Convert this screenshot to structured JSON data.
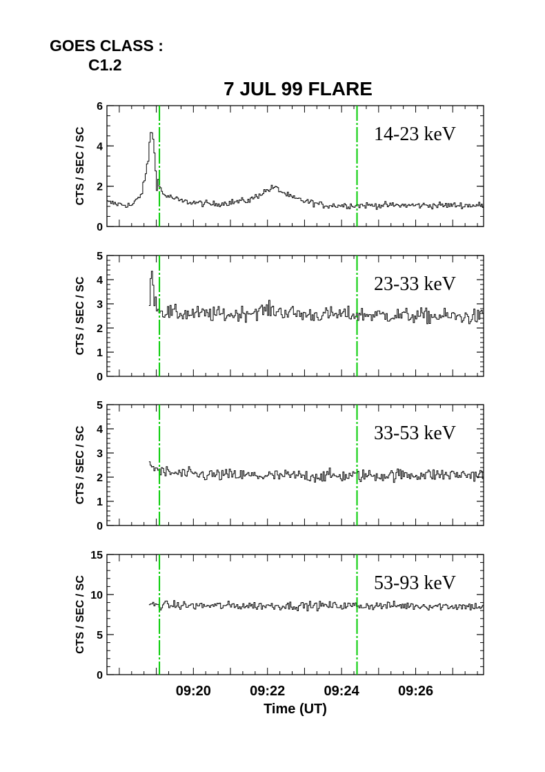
{
  "header": {
    "goes_label": "GOES CLASS :",
    "goes_class": "C1.2",
    "title": "7 JUL 99 FLARE"
  },
  "colors": {
    "marker_lines": "#00cc00",
    "trace": "#000000"
  },
  "chart_data": {
    "type": "line",
    "title": "7 JUL 99 FLARE",
    "xlabel": "Time (UT)",
    "x_unit": "minutes",
    "xlim": [
      "09:17:40",
      "09:27:50"
    ],
    "x_tick_labels": [
      "09:20",
      "09:22",
      "09:24",
      "09:26"
    ],
    "x_tick_values": [
      "09:20",
      "09:22",
      "09:24",
      "09:26"
    ],
    "vertical_markers": [
      "09:19:05",
      "09:24:25"
    ],
    "grid": false,
    "panels": [
      {
        "label": "14-23 keV",
        "ylabel": "CTS / SEC / SC",
        "ylim": [
          0,
          6
        ],
        "y_ticks": [
          0,
          2,
          4,
          6
        ],
        "data_start": "09:17:40",
        "baseline": 1.0,
        "noise": 0.15,
        "x": [
          "09:17:40",
          "09:18:00",
          "09:18:20",
          "09:18:35",
          "09:18:45",
          "09:18:50",
          "09:18:55",
          "09:19:00",
          "09:19:10",
          "09:19:40",
          "09:20:30",
          "09:21:30",
          "09:21:55",
          "09:22:10",
          "09:22:40",
          "09:23:30",
          "09:24:30",
          "09:25:30",
          "09:26:30",
          "09:27:50"
        ],
        "y": [
          1.2,
          1.1,
          1.05,
          1.6,
          3.0,
          4.9,
          4.0,
          2.3,
          1.6,
          1.25,
          1.1,
          1.3,
          1.75,
          1.95,
          1.4,
          1.05,
          1.05,
          1.05,
          1.05,
          1.05
        ]
      },
      {
        "label": "23-33 keV",
        "ylabel": "CTS / SEC / SC",
        "ylim": [
          0,
          5
        ],
        "y_ticks": [
          0,
          1,
          2,
          3,
          4,
          5
        ],
        "data_start": "09:18:48",
        "baseline": 2.6,
        "noise": 0.3,
        "x": [
          "09:18:48",
          "09:18:52",
          "09:18:56",
          "09:19:05",
          "09:19:30",
          "09:21:00",
          "09:22:00",
          "09:23:00",
          "09:24:30",
          "09:26:00",
          "09:27:50"
        ],
        "y": [
          3.0,
          4.6,
          3.2,
          2.7,
          2.6,
          2.55,
          2.75,
          2.55,
          2.55,
          2.5,
          2.45
        ]
      },
      {
        "label": "33-53 keV",
        "ylabel": "CTS / SEC / SC",
        "ylim": [
          0,
          5
        ],
        "y_ticks": [
          0,
          1,
          2,
          3,
          4,
          5
        ],
        "data_start": "09:18:48",
        "baseline": 2.1,
        "noise": 0.25,
        "x": [
          "09:18:48",
          "09:18:55",
          "09:19:10",
          "09:20:00",
          "09:22:00",
          "09:24:00",
          "09:26:00",
          "09:27:50"
        ],
        "y": [
          2.5,
          2.4,
          2.2,
          2.1,
          2.05,
          2.05,
          2.1,
          2.1
        ]
      },
      {
        "label": "53-93 keV",
        "ylabel": "CTS / SEC / SC",
        "ylim": [
          0,
          15
        ],
        "y_ticks": [
          0,
          5,
          10,
          15
        ],
        "data_start": "09:18:48",
        "baseline": 8.6,
        "noise": 0.5,
        "x": [
          "09:18:48",
          "09:20:00",
          "09:22:00",
          "09:24:00",
          "09:26:00",
          "09:27:50"
        ],
        "y": [
          8.7,
          8.6,
          8.6,
          8.6,
          8.6,
          8.5
        ]
      }
    ]
  }
}
